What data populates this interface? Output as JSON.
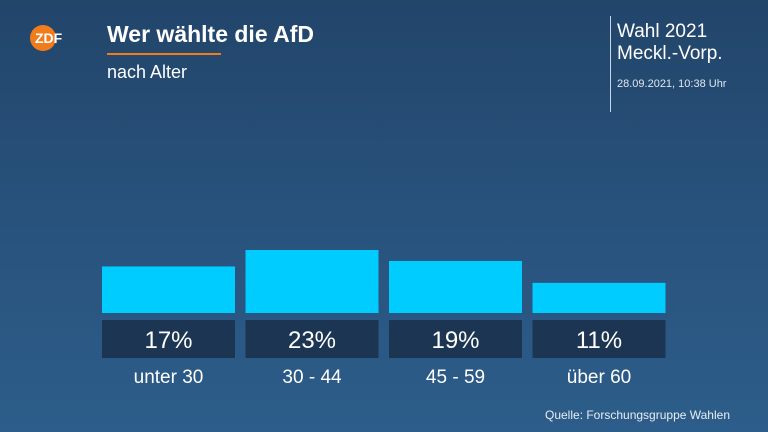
{
  "header": {
    "logo_text": "ZDF",
    "title": "Wer wählte die AfD",
    "subtitle": "nach Alter",
    "election_line1": "Wahl 2021",
    "election_line2": "Meckl.-Vorp.",
    "timestamp": "28.09.2021, 10:38 Uhr"
  },
  "colors": {
    "bar": "#00ccff",
    "label_box": "#1c3552",
    "accent": "#f07c1c"
  },
  "chart_data": {
    "type": "bar",
    "categories": [
      "unter 30",
      "30 - 44",
      "45 - 59",
      "über 60"
    ],
    "values": [
      17,
      23,
      19,
      11
    ],
    "value_labels": [
      "17%",
      "23%",
      "19%",
      "11%"
    ],
    "title": "Wer wählte die AfD",
    "subtitle": "nach Alter",
    "xlabel": "",
    "ylabel": "",
    "ylim": [
      0,
      25
    ],
    "grid": false,
    "legend": "none"
  },
  "footer": {
    "source": "Quelle: Forschungsgruppe Wahlen"
  }
}
